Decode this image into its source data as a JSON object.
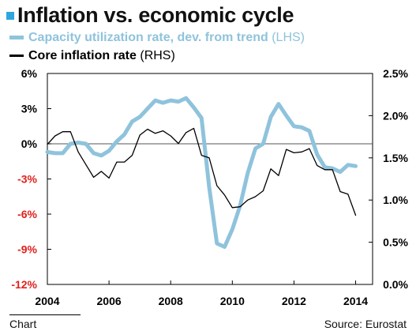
{
  "header": {
    "title": "Inflation vs. economic cycle"
  },
  "legend": [
    {
      "name": "Capacity utilization rate, dev. from trend",
      "suffix": "(LHS)",
      "color": "#8fc3dc"
    },
    {
      "name": "Core inflation rate",
      "suffix": "(RHS)",
      "color": "#000000"
    }
  ],
  "footer": {
    "chart_word": "Chart",
    "source": "Source: Eurostat"
  },
  "chart_data": {
    "type": "line",
    "title": "Inflation vs. economic cycle",
    "x_ticks": [
      "2004",
      "2006",
      "2008",
      "2010",
      "2012",
      "2014"
    ],
    "x_tick_values": [
      2004,
      2006,
      2008,
      2010,
      2012,
      2014
    ],
    "xlim": [
      2004,
      2014.55
    ],
    "left_axis": {
      "ticks": [
        "6%",
        "3%",
        "0%",
        "-3%",
        "-6%",
        "-9%",
        "-12%"
      ],
      "tick_values": [
        6,
        3,
        0,
        -3,
        -6,
        -9,
        -12
      ],
      "ylim": [
        -12,
        6
      ],
      "negative_tick_color": "#e0201b"
    },
    "right_axis": {
      "ticks": [
        "2.5%",
        "2.0%",
        "1.5%",
        "1.0%",
        "0.5%",
        "0.0%"
      ],
      "tick_values": [
        2.5,
        2.0,
        1.5,
        1.0,
        0.5,
        0.0
      ],
      "ylim": [
        0,
        2.5
      ]
    },
    "grid": "none",
    "zero_line": true,
    "series": [
      {
        "name": "Capacity utilization rate, dev. from trend",
        "axis": "left",
        "color": "#8fc3dc",
        "x": [
          2004.0,
          2004.25,
          2004.5,
          2004.75,
          2005.0,
          2005.25,
          2005.5,
          2005.75,
          2006.0,
          2006.25,
          2006.5,
          2006.75,
          2007.0,
          2007.25,
          2007.5,
          2007.75,
          2008.0,
          2008.25,
          2008.5,
          2008.75,
          2009.0,
          2009.25,
          2009.5,
          2009.75,
          2010.0,
          2010.25,
          2010.5,
          2010.75,
          2011.0,
          2011.25,
          2011.5,
          2011.75,
          2012.0,
          2012.25,
          2012.5,
          2012.75,
          2013.0,
          2013.25,
          2013.5,
          2013.75,
          2014.0
        ],
        "values": [
          -0.7,
          -0.8,
          -0.8,
          0.0,
          0.1,
          0.0,
          -0.8,
          -1.0,
          -0.6,
          0.2,
          0.8,
          1.9,
          2.3,
          3.0,
          3.7,
          3.5,
          3.7,
          3.6,
          3.9,
          3.1,
          2.2,
          -3.7,
          -8.5,
          -8.8,
          -7.3,
          -5.3,
          -2.5,
          -0.4,
          0.0,
          2.3,
          3.4,
          2.4,
          1.5,
          1.4,
          1.1,
          -0.9,
          -2.0,
          -2.1,
          -2.4,
          -1.8,
          -1.9
        ]
      },
      {
        "name": "Core inflation rate",
        "axis": "right",
        "color": "#000000",
        "x": [
          2004.0,
          2004.25,
          2004.5,
          2004.75,
          2005.0,
          2005.25,
          2005.5,
          2005.75,
          2006.0,
          2006.25,
          2006.5,
          2006.75,
          2007.0,
          2007.25,
          2007.5,
          2007.75,
          2008.0,
          2008.25,
          2008.5,
          2008.75,
          2009.0,
          2009.25,
          2009.5,
          2009.75,
          2010.0,
          2010.25,
          2010.5,
          2010.75,
          2011.0,
          2011.25,
          2011.5,
          2011.75,
          2012.0,
          2012.25,
          2012.5,
          2012.75,
          2013.0,
          2013.25,
          2013.5,
          2013.75,
          2014.0
        ],
        "values": [
          1.66,
          1.76,
          1.81,
          1.81,
          1.57,
          1.42,
          1.27,
          1.34,
          1.26,
          1.45,
          1.45,
          1.53,
          1.77,
          1.84,
          1.79,
          1.82,
          1.76,
          1.67,
          1.8,
          1.85,
          1.53,
          1.5,
          1.17,
          1.06,
          0.91,
          0.92,
          1.0,
          1.04,
          1.11,
          1.37,
          1.29,
          1.6,
          1.56,
          1.57,
          1.61,
          1.41,
          1.36,
          1.36,
          1.1,
          1.07,
          0.82
        ]
      }
    ]
  }
}
